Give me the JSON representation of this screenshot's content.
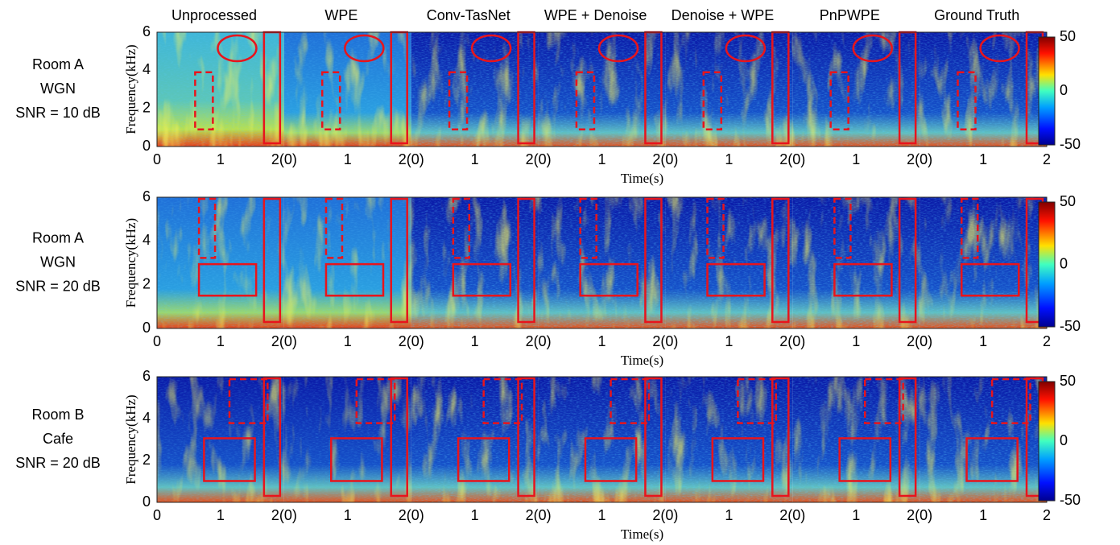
{
  "columns": [
    "Unprocessed",
    "WPE",
    "Conv-TasNet",
    "WPE + Denoise",
    "Denoise + WPE",
    "PnPWPE",
    "Ground Truth"
  ],
  "rows": [
    {
      "label": [
        "Room A",
        "WGN",
        "SNR = 10 dB"
      ]
    },
    {
      "label": [
        "Room A",
        "WGN",
        "SNR = 20 dB"
      ]
    },
    {
      "label": [
        "Room B",
        "Cafe",
        "SNR = 20 dB"
      ]
    }
  ],
  "y_axis_label": "Frequency(kHz)",
  "x_axis_label": "Time(s)",
  "yticks": [
    0,
    2,
    4,
    6
  ],
  "xticks": [
    "0",
    "1",
    "2(0)",
    "1",
    "2(0)",
    "1",
    "2(0)",
    "1",
    "2(0)",
    "1",
    "2(0)",
    "1",
    "2(0)",
    "1",
    "2"
  ],
  "colorbar_ticks": [
    50,
    0,
    -50
  ]
}
